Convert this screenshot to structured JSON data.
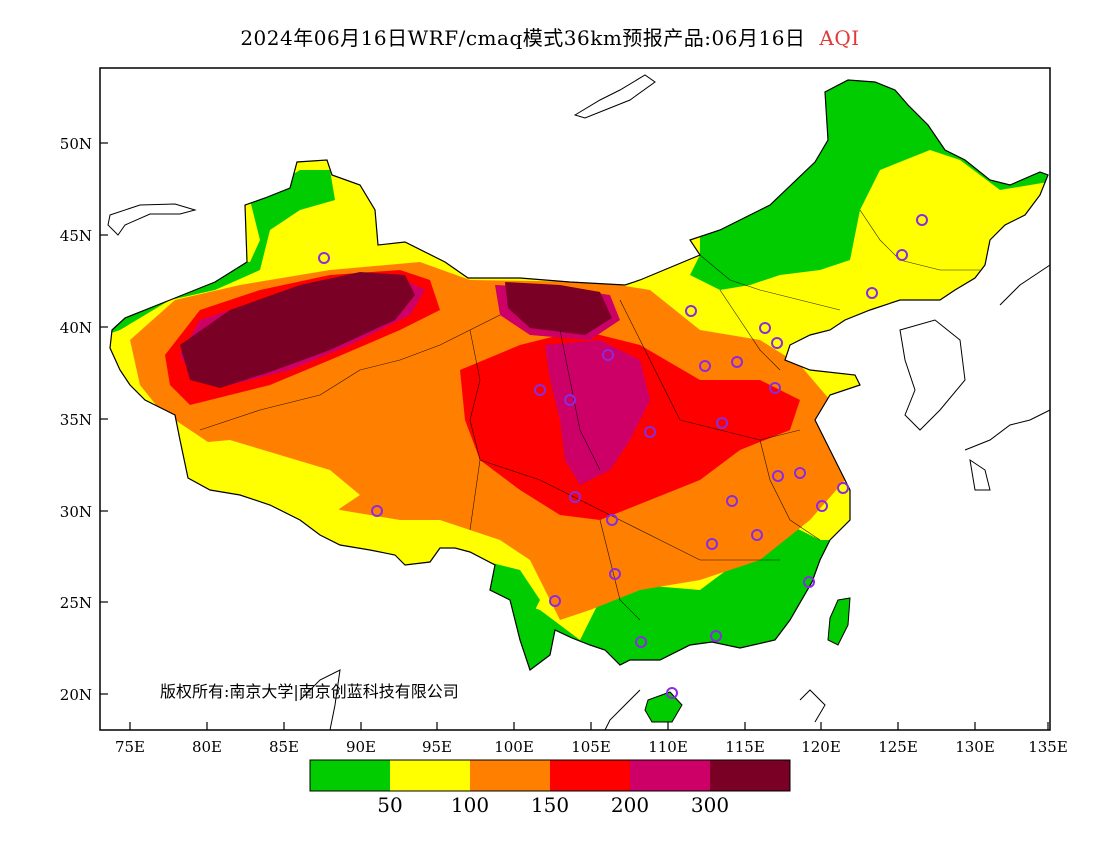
{
  "title": {
    "main": "2024年06月16日WRF/cmaq模式36km预报产品:06月16日",
    "variable": "AQI"
  },
  "copyright": "版权所有:南京大学|南京创蓝科技有限公司",
  "axes": {
    "lat_ticks": [
      "50N",
      "45N",
      "40N",
      "35N",
      "30N",
      "25N",
      "20N"
    ],
    "lon_ticks": [
      "75E",
      "80E",
      "85E",
      "90E",
      "95E",
      "100E",
      "105E",
      "110E",
      "115E",
      "120E",
      "125E",
      "130E",
      "135E"
    ]
  },
  "legend": {
    "colors": [
      "#00cc00",
      "#ffff00",
      "#ff8000",
      "#ff0000",
      "#cc0066",
      "#7a0025"
    ],
    "thresholds": [
      "50",
      "100",
      "150",
      "200",
      "300"
    ]
  },
  "colors": {
    "ocean": "#ffffff",
    "outline": "#000000",
    "station_marker": "#8a2be2"
  }
}
